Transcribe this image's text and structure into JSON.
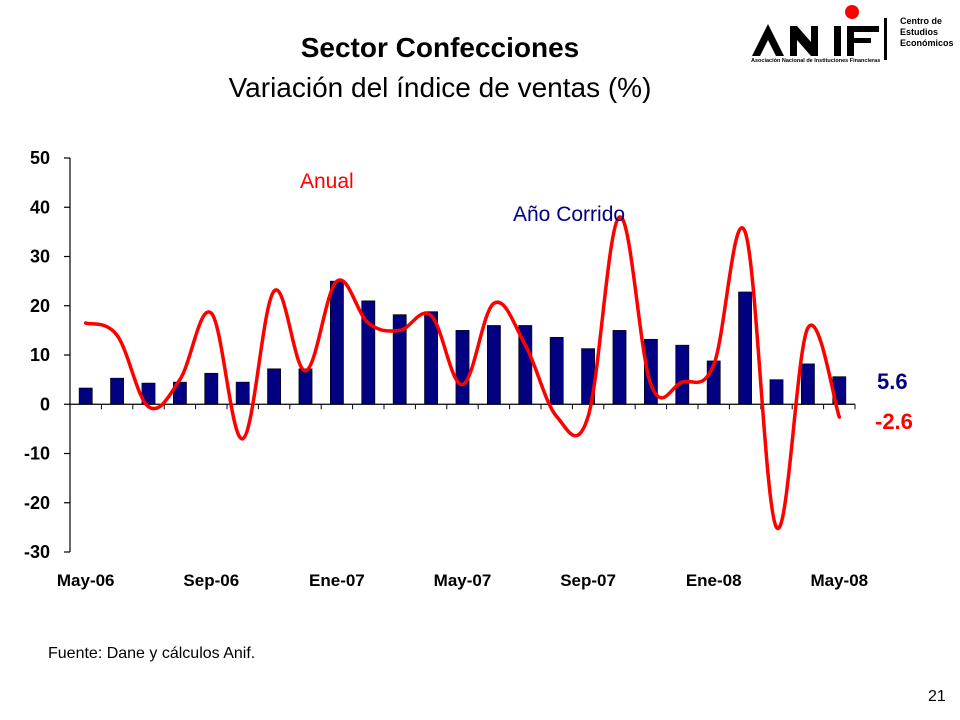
{
  "title": "Sector Confecciones",
  "subtitle": "Variación del índice de ventas (%)",
  "logo": {
    "brand": "ANIF",
    "side_lines": [
      "Centro de",
      "Estudios",
      "Económicos"
    ],
    "tagline": "Asociación Nacional de Instituciones Financieras"
  },
  "source": "Fuente: Dane y cálculos Anif.",
  "page_number": "21",
  "colors": {
    "bar": "#000080",
    "line": "#ff0000",
    "bar_label": "#000080",
    "line_label": "#ff0000"
  },
  "chart_data": {
    "type": "bar+line",
    "ylim": [
      -30,
      50
    ],
    "yticks": [
      "50",
      "40",
      "30",
      "20",
      "10",
      "0",
      "-10",
      "-20",
      "-30"
    ],
    "ytick_values": [
      50,
      40,
      30,
      20,
      10,
      0,
      -10,
      -20,
      -30
    ],
    "xtick_labels": [
      "May-06",
      "Sep-06",
      "Ene-07",
      "May-07",
      "Sep-07",
      "Ene-08",
      "May-08"
    ],
    "xtick_indices": [
      0,
      4,
      8,
      12,
      16,
      20,
      24
    ],
    "categories": [
      "May-06",
      "Jun-06",
      "Jul-06",
      "Ago-06",
      "Sep-06",
      "Oct-06",
      "Nov-06",
      "Dic-06",
      "Ene-07",
      "Feb-07",
      "Mar-07",
      "Abr-07",
      "May-07",
      "Jun-07",
      "Jul-07",
      "Ago-07",
      "Sep-07",
      "Oct-07",
      "Nov-07",
      "Dic-07",
      "Ene-08",
      "Feb-08",
      "Mar-08",
      "Abr-08",
      "May-08"
    ],
    "series": [
      {
        "name": "Año Corrido",
        "kind": "bar",
        "values": [
          3.3,
          5.3,
          4.3,
          4.5,
          6.3,
          4.5,
          7.2,
          7.2,
          25.0,
          21.0,
          18.2,
          18.8,
          15.0,
          16.0,
          16.0,
          13.6,
          11.3,
          15.0,
          13.2,
          12.0,
          8.8,
          22.8,
          5.0,
          8.2,
          5.6
        ]
      },
      {
        "name": "Anual",
        "kind": "line",
        "values": [
          16.5,
          14.0,
          -0.5,
          5.0,
          18.5,
          -7.0,
          23.0,
          6.8,
          25.0,
          16.5,
          15.0,
          18.0,
          4.0,
          20.5,
          12.0,
          -2.5,
          -2.5,
          38.0,
          4.0,
          4.5,
          8.0,
          35.0,
          -25.0,
          15.5,
          -2.6
        ]
      }
    ],
    "end_labels": {
      "bar": "5.6",
      "line": "-2.6"
    }
  }
}
